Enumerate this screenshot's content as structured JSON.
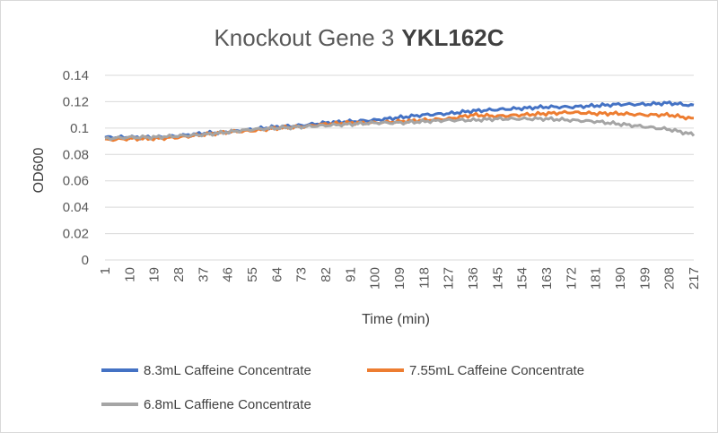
{
  "chart_data": {
    "type": "line",
    "title": "Knockout Gene 3",
    "title_bold": "YKL162C",
    "xlabel": "Time (min)",
    "ylabel": "OD600",
    "ylim": [
      0,
      0.14
    ],
    "yticks": [
      0,
      0.02,
      0.04,
      0.06,
      0.08,
      0.1,
      0.12,
      0.14
    ],
    "ytick_labels": [
      "0",
      "0.02",
      "0.04",
      "0.06",
      "0.08",
      "0.1",
      "0.12",
      "0.14"
    ],
    "categories": [
      "1",
      "10",
      "19",
      "28",
      "37",
      "46",
      "55",
      "64",
      "73",
      "82",
      "91",
      "100",
      "109",
      "118",
      "127",
      "136",
      "145",
      "154",
      "163",
      "172",
      "181",
      "190",
      "199",
      "208",
      "217"
    ],
    "grid": "horizontal",
    "legend_position": "bottom",
    "series": [
      {
        "name": "8.3mL Caffeine Concentrate",
        "color": "#4472C4",
        "values": [
          0.093,
          0.093,
          0.093,
          0.094,
          0.096,
          0.097,
          0.099,
          0.101,
          0.102,
          0.104,
          0.105,
          0.106,
          0.108,
          0.11,
          0.111,
          0.113,
          0.114,
          0.115,
          0.116,
          0.116,
          0.117,
          0.118,
          0.118,
          0.119,
          0.117
        ]
      },
      {
        "name": "7.55mL Caffeine Concentrate",
        "color": "#ED7D31",
        "values": [
          0.091,
          0.092,
          0.092,
          0.093,
          0.095,
          0.097,
          0.098,
          0.1,
          0.101,
          0.103,
          0.104,
          0.104,
          0.105,
          0.106,
          0.107,
          0.11,
          0.109,
          0.11,
          0.111,
          0.112,
          0.111,
          0.111,
          0.11,
          0.11,
          0.107
        ]
      },
      {
        "name": "6.8mL Caffiene Concentrate",
        "color": "#A5A5A5",
        "values": [
          0.092,
          0.093,
          0.093,
          0.094,
          0.095,
          0.097,
          0.099,
          0.1,
          0.101,
          0.102,
          0.103,
          0.104,
          0.104,
          0.105,
          0.106,
          0.106,
          0.107,
          0.107,
          0.107,
          0.106,
          0.105,
          0.103,
          0.101,
          0.099,
          0.095
        ]
      }
    ]
  }
}
